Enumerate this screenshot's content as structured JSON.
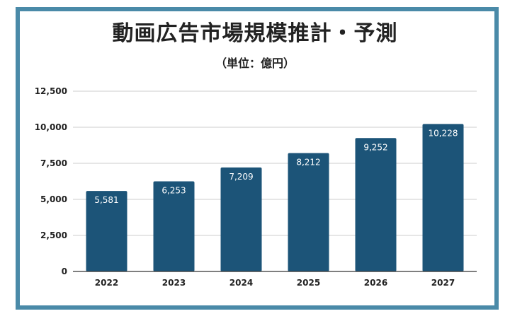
{
  "chart_data": {
    "type": "bar",
    "title": "動画広告市場規模推計・予測",
    "subtitle": "（単位：億円）",
    "categories": [
      "2022",
      "2023",
      "2024",
      "2025",
      "2026",
      "2027"
    ],
    "values": [
      5581,
      6253,
      7209,
      8212,
      9252,
      10228
    ],
    "value_labels": [
      "5,581",
      "6,253",
      "7,209",
      "8,212",
      "9,252",
      "10,228"
    ],
    "ylim": [
      0,
      12500
    ],
    "yticks": [
      0,
      2500,
      5000,
      7500,
      10000,
      12500
    ],
    "ytick_labels": [
      "0",
      "2,500",
      "5,000",
      "7,500",
      "10,000",
      "12,500"
    ],
    "grid": true,
    "bar_color": "#1c5478",
    "frame_color": "#4a8aa8"
  }
}
